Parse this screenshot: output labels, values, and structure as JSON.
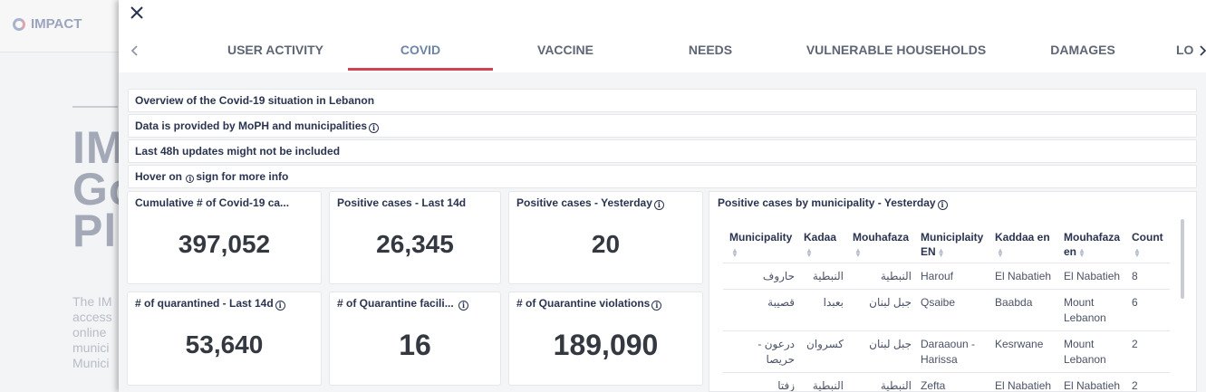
{
  "background": {
    "logo_text": "IMPACT",
    "hero_text": "IM Go Pl",
    "paragraph_lines": [
      "The IM",
      "access",
      "online",
      "munici",
      "Munici"
    ]
  },
  "tabs": [
    {
      "label": "USER ACTIVITY",
      "active": false
    },
    {
      "label": "COVID",
      "active": true
    },
    {
      "label": "VACCINE",
      "active": false
    },
    {
      "label": "NEEDS",
      "active": false
    },
    {
      "label": "VULNERABLE HOUSEHOLDS",
      "active": false
    },
    {
      "label": "DAMAGES",
      "active": false
    },
    {
      "label": "LO",
      "active": false
    }
  ],
  "info_rows": {
    "overview": "Overview of the Covid-19 situation in Lebanon",
    "source": "Data is provided by MoPH and municipalities",
    "updates": "Last 48h updates might not be included",
    "hover_prefix": "Hover on",
    "hover_suffix": "sign for more info"
  },
  "cards": {
    "cumulative": {
      "title": "Cumulative # of Covid-19 ca...",
      "value": "397,052"
    },
    "positive_14d": {
      "title": "Positive cases - Last 14d",
      "value": "26,345"
    },
    "positive_yesterday": {
      "title": "Positive cases - Yesterday",
      "value": "20"
    },
    "quarantined": {
      "title": "# of quarantined - Last 14d",
      "value": "53,640"
    },
    "facilities": {
      "title": "# of Quarantine facili...",
      "value": "16"
    },
    "violations": {
      "title": "# of Quarantine violations",
      "value": "189,090"
    }
  },
  "municipality_table": {
    "title": "Positive cases by municipality - Yesterday",
    "columns": [
      "Municipality",
      "Kadaa",
      "Mouhafaza",
      "Municiplaity EN",
      "Kaddaa en",
      "Mouhafaza en",
      "Count"
    ],
    "rows": [
      [
        "حاروف",
        "النبطية",
        "النبطية",
        "Harouf",
        "El Nabatieh",
        "El Nabatieh",
        "8"
      ],
      [
        "قصيبة",
        "بعبدا",
        "جبل لبنان",
        "Qsaibe",
        "Baabda",
        "Mount Lebanon",
        "6"
      ],
      [
        "درعون - حريصا",
        "كسروان",
        "جبل لبنان",
        "Daraaoun - Harissa",
        "Kesrwane",
        "Mount Lebanon",
        "2"
      ],
      [
        "زفتا",
        "النبطية",
        "النبطية",
        "Zefta",
        "El Nabatieh",
        "El Nabatieh",
        "2"
      ]
    ]
  },
  "colors": {
    "active_tab": "#6c85a8",
    "tab_indicator": "#d0424f",
    "text_dark": "#2a3450",
    "value_text": "#333841"
  }
}
